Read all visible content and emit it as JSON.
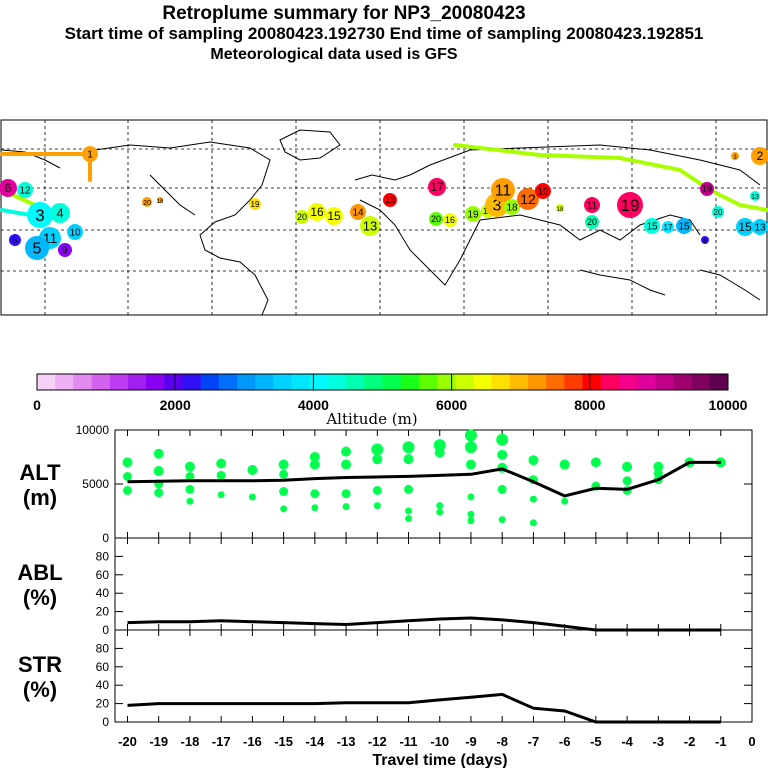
{
  "header": {
    "title": "Retroplume summary for NP3_20080423",
    "subtitle": "Start time of sampling 20080423.192730     End time of sampling 20080423.192851",
    "met_note": "Meteorological data used is GFS"
  },
  "colorbar": {
    "label": "Altitude (m)",
    "ticks": [
      "0",
      "2000",
      "4000",
      "6000",
      "8000",
      "10000"
    ],
    "min": 0,
    "max": 10000,
    "colors": [
      "#f6d3f6",
      "#efb0f2",
      "#e38aef",
      "#d462ef",
      "#bd3cef",
      "#a11fef",
      "#8a00f0",
      "#5b00ec",
      "#2e10f2",
      "#0045f5",
      "#0070fa",
      "#0098fb",
      "#00b6fd",
      "#00d1ff",
      "#00e6ff",
      "#00f8ff",
      "#00ffdd",
      "#00ffb0",
      "#00ff7e",
      "#00ff4f",
      "#1aff1a",
      "#5cff00",
      "#9aff00",
      "#ccff00",
      "#f4ff00",
      "#ffe000",
      "#ffbc00",
      "#ff9700",
      "#ff6d00",
      "#ff3c00",
      "#ff0000",
      "#ff0060",
      "#f5008a",
      "#e0009c",
      "#c1008a",
      "#a0006e",
      "#800060",
      "#600050"
    ]
  },
  "map_labels": [
    "1",
    "2",
    "3",
    "4",
    "5",
    "6",
    "7",
    "8",
    "9",
    "10",
    "11",
    "12",
    "13",
    "14",
    "15",
    "16",
    "17",
    "18",
    "19",
    "20"
  ],
  "chart_data": [
    {
      "type": "line",
      "panel": "ALT",
      "ylabel": "ALT\n(m)",
      "ylabel_lines": [
        "ALT",
        "(m)"
      ],
      "ylim": [
        0,
        10000
      ],
      "yticks": [
        "0",
        "5000",
        "10000"
      ],
      "x": [
        -20,
        -19,
        -18,
        -17,
        -16,
        -15,
        -14,
        -13,
        -12,
        -11,
        -10,
        -9,
        -8,
        -7,
        -6,
        -5,
        -4,
        -3,
        -2,
        -1
      ],
      "series": [
        {
          "name": "median altitude",
          "values": [
            5200,
            5250,
            5300,
            5300,
            5300,
            5350,
            5500,
            5600,
            5650,
            5700,
            5800,
            5900,
            6400,
            5200,
            3900,
            4600,
            4500,
            5400,
            7000,
            7000
          ]
        }
      ],
      "scatter_points": [
        {
          "x": -20,
          "y": 7000
        },
        {
          "x": -20,
          "y": 5700
        },
        {
          "x": -20,
          "y": 4400
        },
        {
          "x": -19,
          "y": 7800
        },
        {
          "x": -19,
          "y": 6200
        },
        {
          "x": -19,
          "y": 5000
        },
        {
          "x": -19,
          "y": 4200
        },
        {
          "x": -18,
          "y": 6600
        },
        {
          "x": -18,
          "y": 5700
        },
        {
          "x": -18,
          "y": 4500
        },
        {
          "x": -18,
          "y": 3400
        },
        {
          "x": -17,
          "y": 6900
        },
        {
          "x": -17,
          "y": 5800
        },
        {
          "x": -17,
          "y": 4000
        },
        {
          "x": -16,
          "y": 6300
        },
        {
          "x": -16,
          "y": 3800
        },
        {
          "x": -15,
          "y": 6800
        },
        {
          "x": -15,
          "y": 5900
        },
        {
          "x": -15,
          "y": 4300
        },
        {
          "x": -15,
          "y": 2700
        },
        {
          "x": -14,
          "y": 7500
        },
        {
          "x": -14,
          "y": 6800
        },
        {
          "x": -14,
          "y": 4100
        },
        {
          "x": -14,
          "y": 2800
        },
        {
          "x": -13,
          "y": 8000
        },
        {
          "x": -13,
          "y": 6800
        },
        {
          "x": -13,
          "y": 4100
        },
        {
          "x": -13,
          "y": 2900
        },
        {
          "x": -12,
          "y": 8200
        },
        {
          "x": -12,
          "y": 7300
        },
        {
          "x": -12,
          "y": 4400
        },
        {
          "x": -12,
          "y": 3000
        },
        {
          "x": -11,
          "y": 8400
        },
        {
          "x": -11,
          "y": 7300
        },
        {
          "x": -11,
          "y": 4500
        },
        {
          "x": -11,
          "y": 2500
        },
        {
          "x": -11,
          "y": 1800
        },
        {
          "x": -10,
          "y": 8600
        },
        {
          "x": -10,
          "y": 7900
        },
        {
          "x": -10,
          "y": 3000
        },
        {
          "x": -10,
          "y": 2400
        },
        {
          "x": -9,
          "y": 9500
        },
        {
          "x": -9,
          "y": 8400
        },
        {
          "x": -9,
          "y": 6800
        },
        {
          "x": -9,
          "y": 3800
        },
        {
          "x": -9,
          "y": 2200
        },
        {
          "x": -9,
          "y": 1600
        },
        {
          "x": -8,
          "y": 9100
        },
        {
          "x": -8,
          "y": 7700
        },
        {
          "x": -8,
          "y": 6500
        },
        {
          "x": -8,
          "y": 4500
        },
        {
          "x": -8,
          "y": 1700
        },
        {
          "x": -7,
          "y": 7200
        },
        {
          "x": -7,
          "y": 5400
        },
        {
          "x": -7,
          "y": 3600
        },
        {
          "x": -7,
          "y": 1400
        },
        {
          "x": -6,
          "y": 3400
        },
        {
          "x": -6,
          "y": 6800
        },
        {
          "x": -5,
          "y": 4800
        },
        {
          "x": -5,
          "y": 7000
        },
        {
          "x": -4,
          "y": 4400
        },
        {
          "x": -4,
          "y": 5300
        },
        {
          "x": -4,
          "y": 6600
        },
        {
          "x": -3,
          "y": 5400
        },
        {
          "x": -3,
          "y": 6000
        },
        {
          "x": -3,
          "y": 6600
        },
        {
          "x": -2,
          "y": 7000
        },
        {
          "x": -1,
          "y": 7000
        }
      ]
    },
    {
      "type": "line",
      "panel": "ABL",
      "ylabel": "ABL\n(%)",
      "ylabel_lines": [
        "ABL",
        "(%)"
      ],
      "ylim": [
        0,
        100
      ],
      "yticks": [
        "0",
        "20",
        "40",
        "60",
        "80"
      ],
      "x": [
        -20,
        -19,
        -18,
        -17,
        -16,
        -15,
        -14,
        -13,
        -12,
        -11,
        -10,
        -9,
        -8,
        -7,
        -6,
        -5,
        -4,
        -3,
        -2,
        -1
      ],
      "series": [
        {
          "name": "ABL fraction",
          "values": [
            8,
            9,
            9,
            10,
            9,
            8,
            7,
            6,
            8,
            10,
            12,
            13,
            11,
            8,
            4,
            0,
            0,
            0,
            0,
            0
          ]
        }
      ]
    },
    {
      "type": "line",
      "panel": "STR",
      "ylabel": "STR\n(%)",
      "ylabel_lines": [
        "STR",
        "(%)"
      ],
      "ylim": [
        0,
        100
      ],
      "yticks": [
        "0",
        "20",
        "40",
        "60",
        "80"
      ],
      "x": [
        -20,
        -19,
        -18,
        -17,
        -16,
        -15,
        -14,
        -13,
        -12,
        -11,
        -10,
        -9,
        -8,
        -7,
        -6,
        -5,
        -4,
        -3,
        -2,
        -1
      ],
      "series": [
        {
          "name": "stratospheric fraction",
          "values": [
            18,
            20,
            20,
            20,
            20,
            20,
            20,
            21,
            21,
            21,
            24,
            27,
            30,
            15,
            12,
            0,
            0,
            0,
            0,
            0
          ]
        }
      ]
    }
  ],
  "xaxis": {
    "label": "Travel time (days)",
    "ticks": [
      "-20",
      "-19",
      "-18",
      "-17",
      "-16",
      "-15",
      "-14",
      "-13",
      "-12",
      "-11",
      "-10",
      "-9",
      "-8",
      "-7",
      "-6",
      "-5",
      "-4",
      "-3",
      "-2",
      "-1",
      "0"
    ]
  }
}
